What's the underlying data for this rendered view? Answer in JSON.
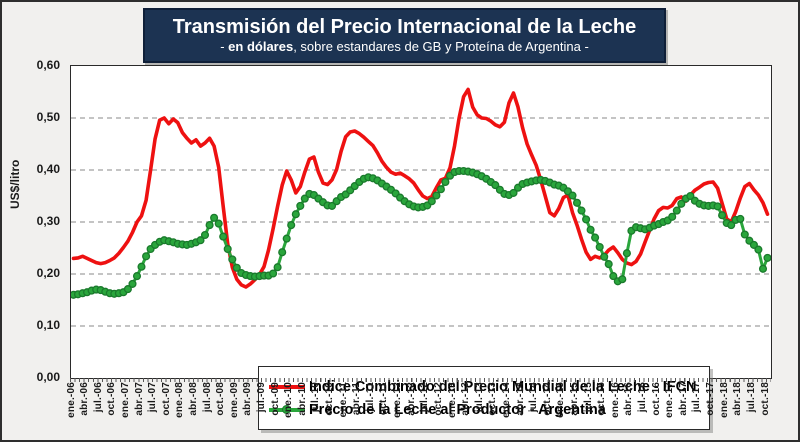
{
  "title": {
    "line1": "Transmisión del Precio Internacional de la Leche",
    "line2_prefix": "- ",
    "line2_bold": "en dólares",
    "line2_rest": ", sobre estandares de GB y Proteína de  Argentina -"
  },
  "y_axis": {
    "title": "US$/litro",
    "ticks": [
      "0,00",
      "0,10",
      "0,20",
      "0,30",
      "0,40",
      "0,50",
      "0,60"
    ]
  },
  "x_axis": {
    "labels": [
      "ene.-06",
      "abr.-06",
      "jul.-06",
      "oct.-06",
      "ene.-07",
      "abr.-07",
      "jul.-07",
      "oct.-07",
      "ene.-08",
      "abr.-08",
      "jul.-08",
      "oct.-08",
      "ene.-09",
      "abr.-09",
      "jul.-09",
      "oct.-09",
      "ene.-10",
      "abr.-10",
      "jul.-10",
      "oct.-10",
      "ene.-11",
      "abr.-11",
      "jul.-11",
      "oct.-11",
      "ene.-12",
      "abr.-12",
      "jul.-12",
      "oct.-12",
      "ene.-13",
      "abr.-13",
      "jul.-13",
      "oct.-13",
      "ene.-14",
      "abr.-14",
      "jul.-14",
      "oct.-14",
      "ene.-15",
      "abr.-15",
      "jul.-15",
      "oct.-15",
      "ene.-16",
      "abr.-16",
      "jul.-16",
      "oct.-16",
      "ene.-17",
      "abr.-17",
      "jul.-17",
      "oct.-17",
      "ene.-18",
      "abr.-18",
      "jul.-18",
      "oct.-18"
    ],
    "label_step_months": 3
  },
  "colors": {
    "navy_box": "#1c3352",
    "red_series": "#ee1111",
    "green_series": "#2aa63c",
    "green_marker_edge": "#1a7a2c",
    "gridline": "#a0a0a0",
    "plot_border": "#2a2a2a",
    "background": "#f1f0ee"
  },
  "chart_data": {
    "type": "line",
    "title": "Transmisión del Precio Internacional de la Leche",
    "subtitle": "- en dólares, sobre estandares de GB y Proteína de Argentina -",
    "ylabel": "US$/litro",
    "ylim": [
      0.0,
      0.6
    ],
    "ytick_interval": 0.1,
    "gridlines": [
      0.1,
      0.2,
      0.3,
      0.4,
      0.5
    ],
    "grid_style": "dashed",
    "legend_position": "inside-bottom-center",
    "x_monthly_start": "ene-06",
    "x_monthly_end": "oct-18",
    "n_points": 154,
    "series": [
      {
        "name": "Indice Combinado del Precio Mundial de la Leche - IFCN",
        "color": "#ee1111",
        "marker": "none",
        "values": [
          0.23,
          0.231,
          0.234,
          0.23,
          0.226,
          0.222,
          0.22,
          0.222,
          0.226,
          0.231,
          0.24,
          0.251,
          0.263,
          0.28,
          0.3,
          0.312,
          0.342,
          0.4,
          0.46,
          0.496,
          0.5,
          0.489,
          0.498,
          0.491,
          0.472,
          0.461,
          0.452,
          0.458,
          0.446,
          0.452,
          0.461,
          0.446,
          0.405,
          0.33,
          0.258,
          0.213,
          0.19,
          0.179,
          0.175,
          0.181,
          0.189,
          0.199,
          0.214,
          0.246,
          0.287,
          0.33,
          0.371,
          0.398,
          0.381,
          0.356,
          0.368,
          0.396,
          0.421,
          0.425,
          0.396,
          0.375,
          0.372,
          0.381,
          0.401,
          0.436,
          0.464,
          0.473,
          0.475,
          0.47,
          0.463,
          0.455,
          0.447,
          0.433,
          0.417,
          0.405,
          0.396,
          0.392,
          0.394,
          0.389,
          0.383,
          0.375,
          0.362,
          0.35,
          0.345,
          0.349,
          0.366,
          0.381,
          0.384,
          0.404,
          0.446,
          0.5,
          0.541,
          0.555,
          0.521,
          0.506,
          0.5,
          0.499,
          0.494,
          0.487,
          0.483,
          0.492,
          0.529,
          0.548,
          0.521,
          0.481,
          0.45,
          0.429,
          0.409,
          0.381,
          0.35,
          0.318,
          0.312,
          0.326,
          0.347,
          0.352,
          0.318,
          0.294,
          0.267,
          0.242,
          0.228,
          0.234,
          0.231,
          0.236,
          0.246,
          0.252,
          0.241,
          0.228,
          0.221,
          0.218,
          0.224,
          0.238,
          0.261,
          0.284,
          0.306,
          0.322,
          0.328,
          0.327,
          0.332,
          0.345,
          0.348,
          0.34,
          0.352,
          0.361,
          0.367,
          0.373,
          0.376,
          0.377,
          0.365,
          0.336,
          0.306,
          0.3,
          0.32,
          0.346,
          0.368,
          0.374,
          0.362,
          0.352,
          0.337,
          0.315
        ]
      },
      {
        "name": "Precio de la Leche al Productor - Argentina",
        "color": "#2aa63c",
        "marker": "circle",
        "marker_edge": "#1a7a2c",
        "values": [
          0.16,
          0.161,
          0.163,
          0.165,
          0.168,
          0.17,
          0.169,
          0.166,
          0.163,
          0.162,
          0.163,
          0.165,
          0.171,
          0.181,
          0.196,
          0.214,
          0.234,
          0.248,
          0.256,
          0.262,
          0.265,
          0.263,
          0.261,
          0.258,
          0.257,
          0.256,
          0.258,
          0.261,
          0.265,
          0.275,
          0.294,
          0.308,
          0.297,
          0.272,
          0.248,
          0.228,
          0.212,
          0.202,
          0.198,
          0.196,
          0.195,
          0.196,
          0.197,
          0.197,
          0.201,
          0.213,
          0.242,
          0.268,
          0.294,
          0.315,
          0.331,
          0.345,
          0.354,
          0.352,
          0.345,
          0.338,
          0.332,
          0.331,
          0.34,
          0.348,
          0.353,
          0.361,
          0.369,
          0.377,
          0.383,
          0.386,
          0.384,
          0.38,
          0.374,
          0.368,
          0.362,
          0.355,
          0.347,
          0.34,
          0.334,
          0.33,
          0.328,
          0.329,
          0.332,
          0.34,
          0.351,
          0.363,
          0.377,
          0.389,
          0.396,
          0.398,
          0.398,
          0.397,
          0.395,
          0.392,
          0.388,
          0.383,
          0.377,
          0.371,
          0.362,
          0.354,
          0.352,
          0.356,
          0.366,
          0.373,
          0.376,
          0.378,
          0.38,
          0.381,
          0.379,
          0.376,
          0.372,
          0.37,
          0.366,
          0.359,
          0.351,
          0.337,
          0.322,
          0.305,
          0.285,
          0.27,
          0.252,
          0.233,
          0.219,
          0.196,
          0.186,
          0.19,
          0.24,
          0.283,
          0.29,
          0.288,
          0.286,
          0.289,
          0.293,
          0.296,
          0.3,
          0.303,
          0.31,
          0.322,
          0.335,
          0.345,
          0.35,
          0.341,
          0.335,
          0.332,
          0.331,
          0.332,
          0.33,
          0.313,
          0.298,
          0.294,
          0.304,
          0.306,
          0.276,
          0.264,
          0.256,
          0.247,
          0.21,
          0.231
        ]
      }
    ]
  }
}
